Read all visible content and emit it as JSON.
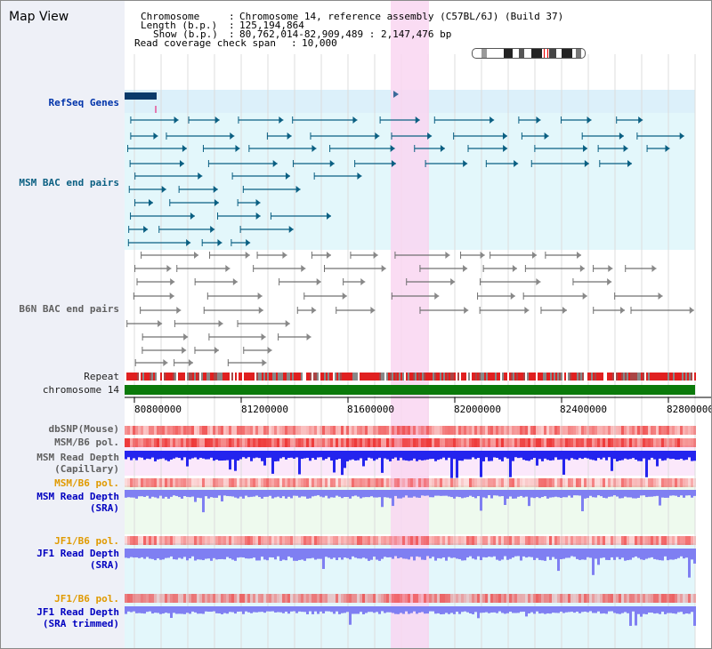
{
  "app": {
    "title": "Map View"
  },
  "info": {
    "chromosome_key": "Chromosome",
    "chromosome_val": "Chromosome 14, reference assembly (C57BL/6J) (Build 37)",
    "length_key": "Length (b.p.)",
    "length_val": "125,194,864",
    "show_key": "Show (b.p.)",
    "show_val": "80,762,014-82,909,489 : 2,147,476 bp",
    "coverage_key": "Read coverage check span",
    "coverage_val": "10,000"
  },
  "tracks": {
    "refseq": "RefSeq Genes",
    "msm_bac": "MSM BAC end pairs",
    "b6n_bac": "B6N BAC end pairs",
    "repeat": "Repeat",
    "chromosome": "chromosome 14",
    "dbsnp": "dbSNP(Mouse)",
    "msm_b6_pol": "MSM/B6 pol.",
    "msm_depth_cap_1": "MSM Read Depth",
    "msm_depth_cap_2": "(Capillary)",
    "msm_b6_pol_2": "MSM/B6 pol.",
    "msm_depth_sra_1": "MSM Read Depth",
    "msm_depth_sra_2": "(SRA)",
    "jf1_b6_pol": "JF1/B6 pol.",
    "jf1_depth_sra_1": "JF1 Read Depth",
    "jf1_depth_sra_2": "(SRA)",
    "jf1_b6_pol_2": "JF1/B6 pol.",
    "jf1_depth_trim_1": "JF1 Read Depth",
    "jf1_depth_trim_2": "(SRA trimmed)"
  },
  "axis": {
    "ticks": [
      "80800000",
      "81200000",
      "81600000",
      "82000000",
      "82400000",
      "82800000"
    ]
  },
  "colors": {
    "highlight": "#f9d6f1",
    "chromosome_bar": "#0b7a0b",
    "refseq": "#0a5f82",
    "bac_gray": "#707070",
    "depth_blue_dark": "#2424ee",
    "depth_blue_light": "#7f7ff2",
    "pol_red": "#ee3a3a"
  }
}
